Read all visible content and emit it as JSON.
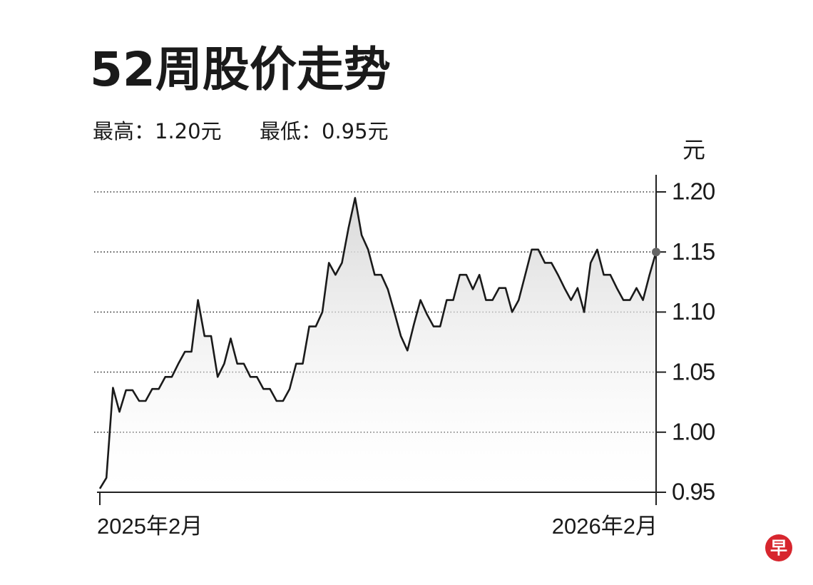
{
  "chart_data": {
    "type": "line",
    "title": "52周股价走势",
    "subtitle_high": "最高：1.20元",
    "subtitle_low": "最低：0.95元",
    "y_axis_label": "元",
    "logo": "早",
    "color": "#1a1a1a",
    "grid": true,
    "categories": [
      "2025年2月",
      null,
      null,
      null,
      null,
      null,
      null,
      null,
      null,
      null,
      null,
      null,
      null,
      null,
      null,
      null,
      null,
      null,
      null,
      null,
      null,
      null,
      null,
      null,
      null,
      null,
      null,
      null,
      null,
      null,
      null,
      null,
      null,
      null,
      null,
      null,
      null,
      null,
      null,
      null,
      null,
      null,
      null,
      null,
      null,
      null,
      null,
      null,
      null,
      null,
      null,
      null,
      null,
      null,
      null,
      null,
      null,
      null,
      null,
      null,
      null,
      null,
      null,
      null,
      null,
      null,
      null,
      null,
      null,
      null,
      null,
      null,
      null,
      null,
      null,
      null,
      null,
      null,
      null,
      null,
      null,
      null,
      null,
      null,
      null,
      "2026年2月"
    ],
    "values": [
      0.953,
      0.962,
      1.037,
      1.017,
      1.035,
      1.035,
      1.026,
      1.026,
      1.036,
      1.036,
      1.046,
      1.046,
      1.057,
      1.067,
      1.067,
      1.11,
      1.08,
      1.08,
      1.046,
      1.057,
      1.078,
      1.057,
      1.057,
      1.046,
      1.046,
      1.036,
      1.036,
      1.026,
      1.026,
      1.036,
      1.057,
      1.057,
      1.088,
      1.088,
      1.1,
      1.141,
      1.131,
      1.141,
      1.17,
      1.195,
      1.164,
      1.152,
      1.131,
      1.131,
      1.119,
      1.1,
      1.08,
      1.068,
      1.09,
      1.11,
      1.098,
      1.088,
      1.088,
      1.11,
      1.11,
      1.131,
      1.131,
      1.119,
      1.131,
      1.11,
      1.11,
      1.12,
      1.12,
      1.1,
      1.11,
      1.131,
      1.152,
      1.152,
      1.141,
      1.141,
      1.131,
      1.12,
      1.11,
      1.12,
      1.1,
      1.141,
      1.152,
      1.131,
      1.131,
      1.12,
      1.11,
      1.11,
      1.12,
      1.11,
      1.131,
      1.15
    ],
    "ylim": [
      0.95,
      1.2
    ],
    "yticks": [
      0.95,
      {
        "value": 1.0,
        "label": "1.00"
      },
      1.05,
      {
        "value": 1.1,
        "label": "1.10"
      },
      1.15,
      {
        "value": 1.2,
        "label": "1.20"
      }
    ]
  }
}
